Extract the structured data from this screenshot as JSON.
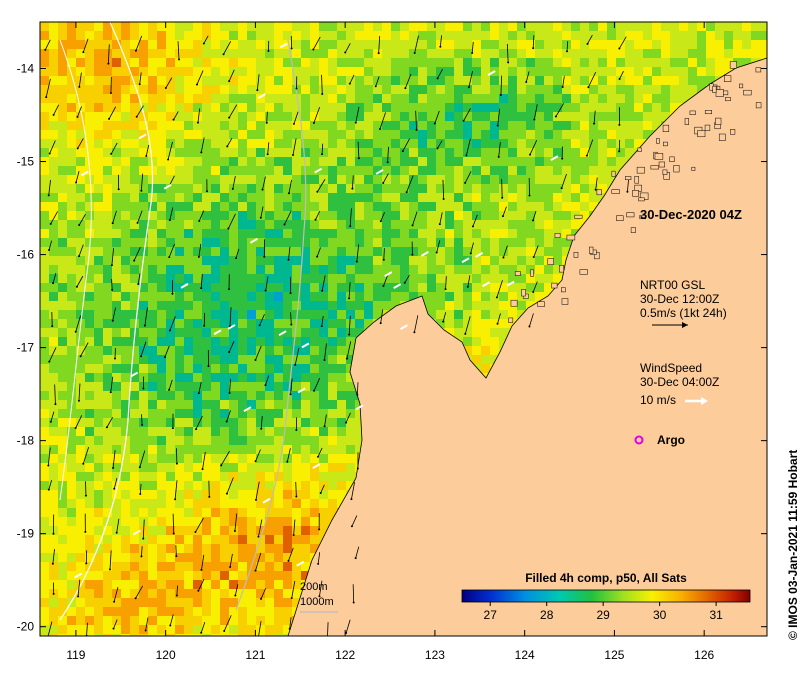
{
  "map": {
    "lon_range": [
      118.6,
      126.7
    ],
    "lat_range": [
      -20.1,
      -13.5
    ],
    "lon_ticks": [
      119,
      120,
      121,
      122,
      123,
      124,
      125,
      126
    ],
    "lat_ticks": [
      -14,
      -15,
      -16,
      -17,
      -18,
      -19,
      -20
    ],
    "lon_tick_labels": [
      "119",
      "120",
      "121",
      "122",
      "123",
      "124",
      "125",
      "126"
    ],
    "lat_tick_labels": [
      "-14",
      "-15",
      "-16",
      "-17",
      "-18",
      "-19",
      "-20"
    ]
  },
  "labels": {
    "timestamp": "30-Dec-2020 04Z",
    "current_title": "NRT00 GSL",
    "current_time": "30-Dec 12:00Z",
    "current_scale": "0.5m/s (1kt 24h)",
    "wind_title": "WindSpeed",
    "wind_time": "30-Dec 04:00Z",
    "wind_scale": "10 m/s",
    "argo": "Argo",
    "isobath_200": "200m",
    "isobath_1000": "1000m",
    "credit": "© IMOS 03-Jan-2021 11:59 Hobart"
  },
  "colorbar": {
    "title": "Filled 4h comp, p50, All Sats",
    "range": [
      26.5,
      31.6
    ],
    "ticks": [
      27,
      28,
      29,
      30,
      31
    ],
    "tick_labels": [
      "27",
      "28",
      "29",
      "30",
      "31"
    ]
  },
  "colors": {
    "land": "#fdcc9b",
    "argo_marker": "#e000e0",
    "frame": "#000000"
  }
}
